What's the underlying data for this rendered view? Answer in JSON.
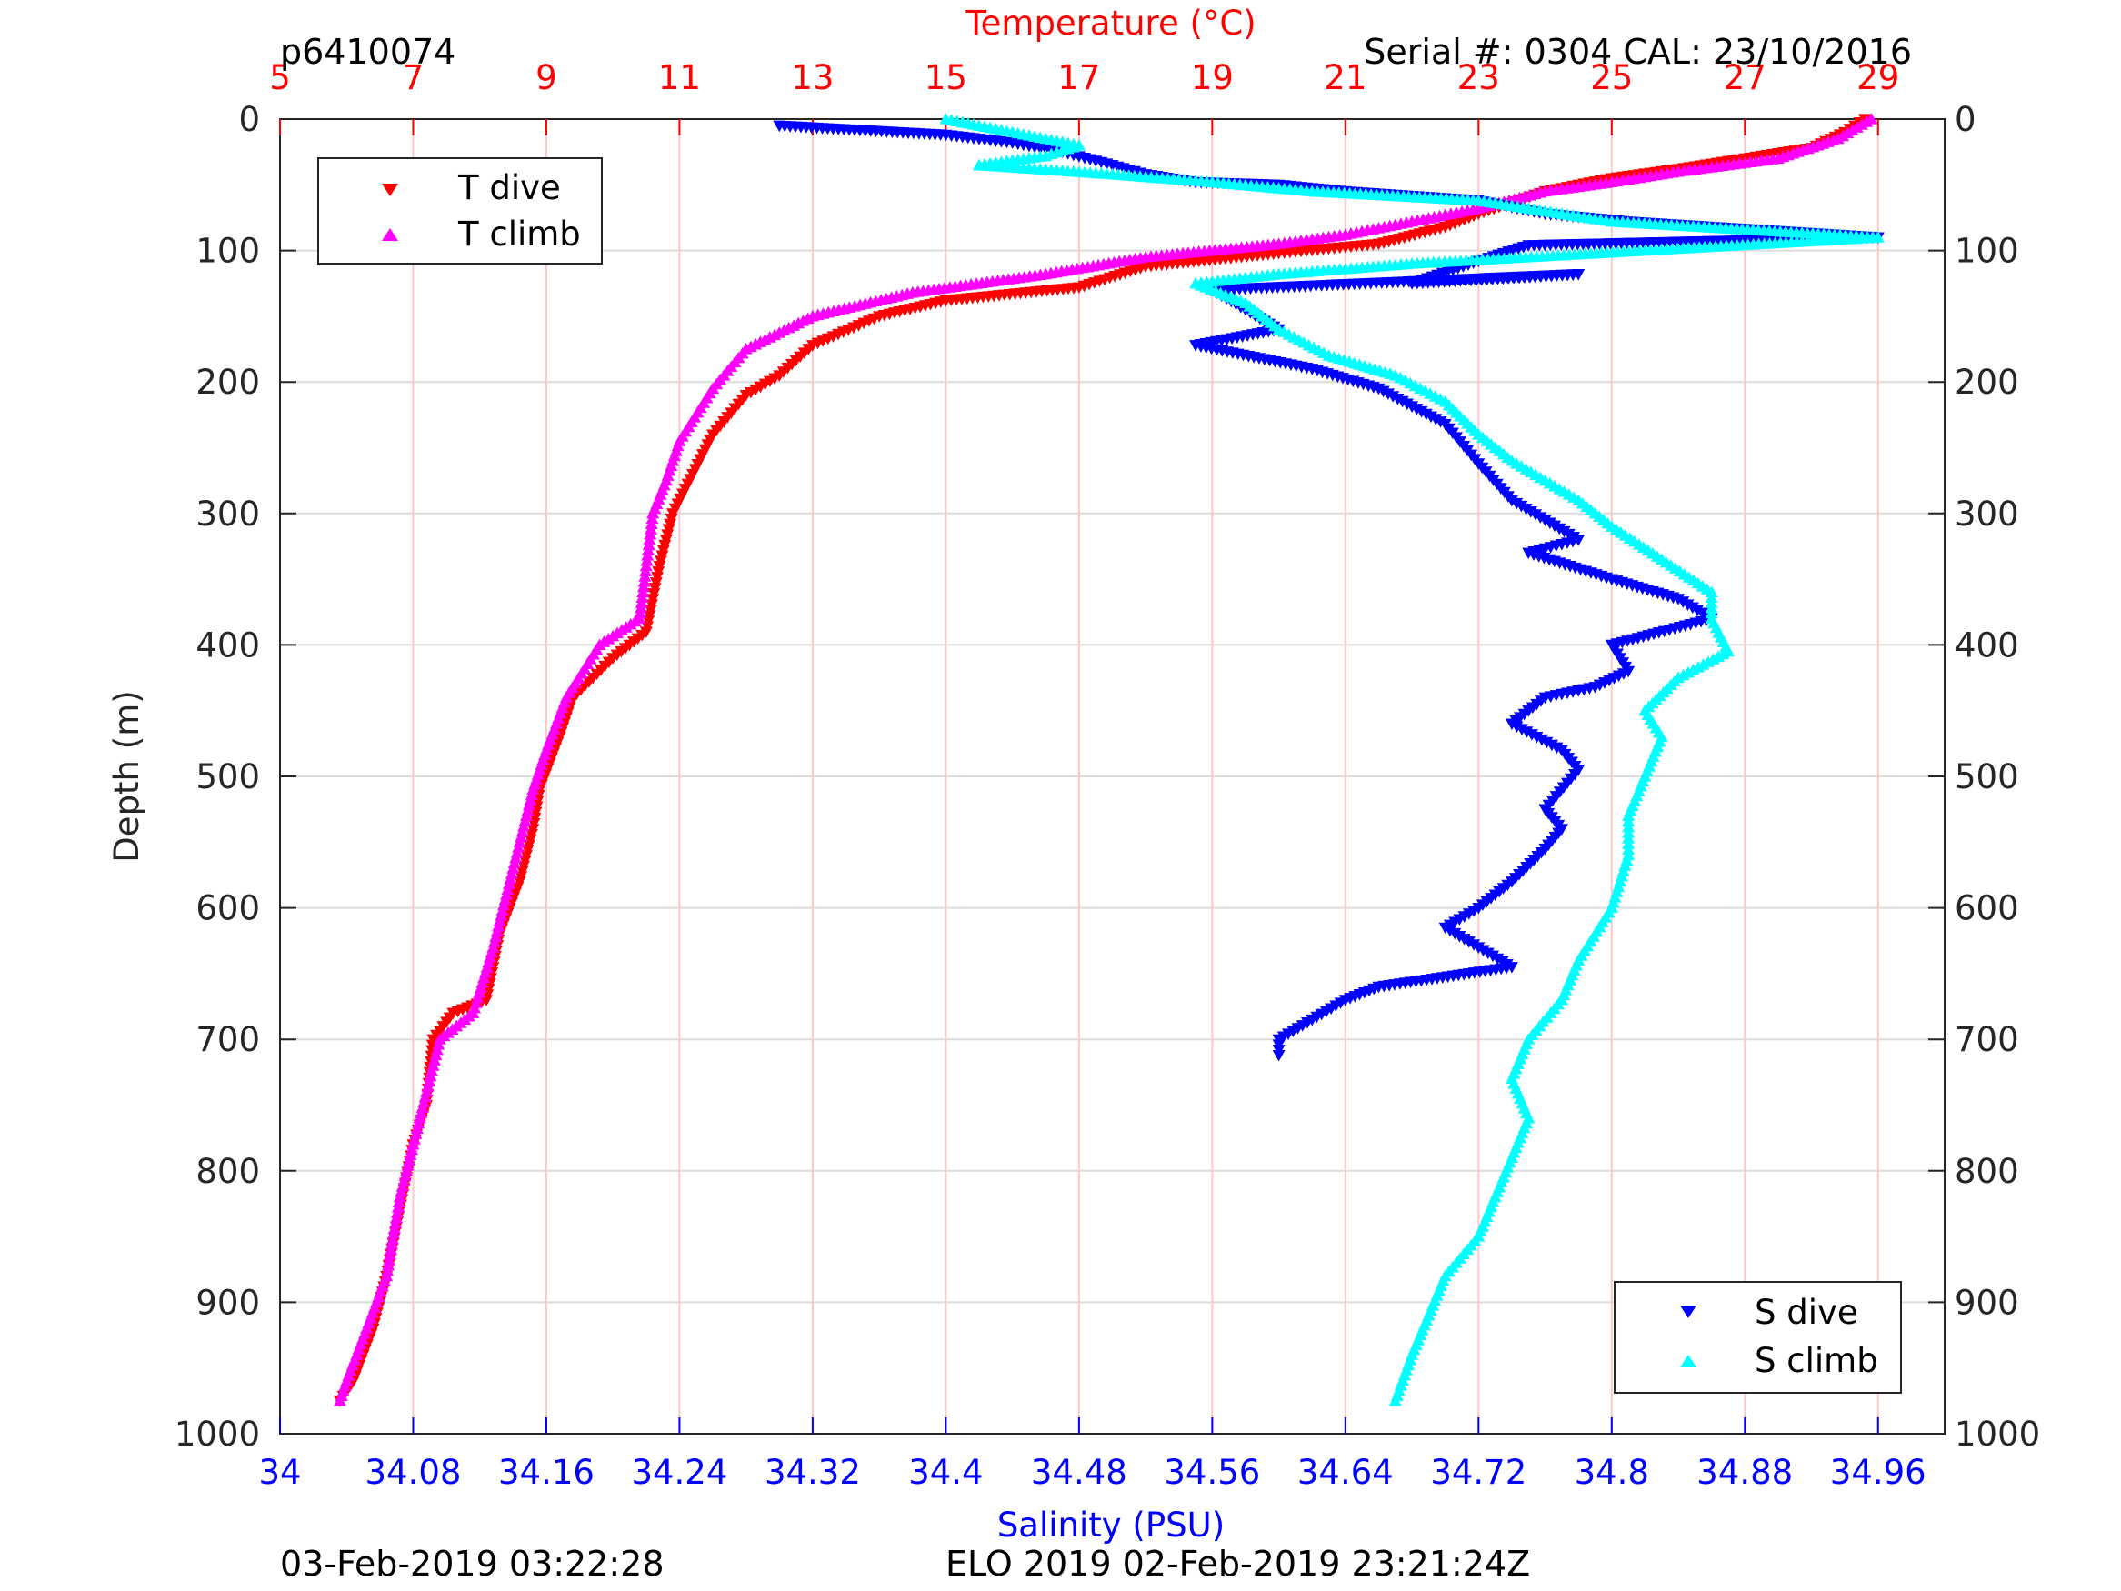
{
  "chart_data": {
    "type": "scatter",
    "title_left": "p6410074",
    "title_right": "Serial #: 0304  CAL: 23/10/2016",
    "footer_left": "03-Feb-2019 03:22:28",
    "footer_right": "ELO 2019 02-Feb-2019 23:21:24Z",
    "y_axis": {
      "label": "Depth (m)",
      "range": [
        0,
        1000
      ],
      "reversed": true,
      "ticks": [
        0,
        100,
        200,
        300,
        400,
        500,
        600,
        700,
        800,
        900,
        1000
      ]
    },
    "temperature_axis": {
      "label": "Temperature (°C)",
      "position": "top",
      "range": [
        5,
        30
      ],
      "ticks": [
        5,
        7,
        9,
        11,
        13,
        15,
        17,
        19,
        21,
        23,
        25,
        27,
        29
      ],
      "color": "#ff0000"
    },
    "salinity_axis": {
      "label": "Salinity (PSU)",
      "position": "bottom",
      "range": [
        34.0,
        35.0
      ],
      "ticks": [
        "34",
        "34.08",
        "34.16",
        "34.24",
        "34.32",
        "34.4",
        "34.48",
        "34.56",
        "34.64",
        "34.72",
        "34.8",
        "34.88",
        "34.96"
      ],
      "color": "#0000ff"
    },
    "grid": "vertical-red-temperature, horizontal-gray-depth",
    "legends": [
      {
        "position": "top-left",
        "entries": [
          {
            "label": "T dive",
            "color": "#ff0000",
            "marker": "triangle-down"
          },
          {
            "label": "T climb",
            "color": "#ff00ff",
            "marker": "triangle-up"
          }
        ]
      },
      {
        "position": "bottom-right",
        "entries": [
          {
            "label": "S dive",
            "color": "#0000ff",
            "marker": "triangle-down"
          },
          {
            "label": "S climb",
            "color": "#00ffff",
            "marker": "triangle-up"
          }
        ]
      }
    ],
    "series": [
      {
        "name": "T dive",
        "axis": "temperature",
        "color": "#ff0000",
        "marker": "triangle-down",
        "points": [
          [
            28.8,
            0
          ],
          [
            28.5,
            10
          ],
          [
            28.0,
            22
          ],
          [
            27.0,
            30
          ],
          [
            26.0,
            38
          ],
          [
            25.0,
            45
          ],
          [
            24.0,
            55
          ],
          [
            23.0,
            72
          ],
          [
            22.5,
            82
          ],
          [
            21.5,
            95
          ],
          [
            20.0,
            102
          ],
          [
            18.0,
            112
          ],
          [
            17.0,
            128
          ],
          [
            15.0,
            138
          ],
          [
            14.0,
            150
          ],
          [
            13.0,
            172
          ],
          [
            12.5,
            195
          ],
          [
            12.0,
            210
          ],
          [
            11.5,
            240
          ],
          [
            11.2,
            270
          ],
          [
            10.9,
            300
          ],
          [
            10.7,
            340
          ],
          [
            10.5,
            390
          ],
          [
            10.0,
            410
          ],
          [
            9.4,
            440
          ],
          [
            9.2,
            470
          ],
          [
            8.9,
            510
          ],
          [
            8.8,
            540
          ],
          [
            8.6,
            580
          ],
          [
            8.3,
            620
          ],
          [
            8.1,
            670
          ],
          [
            7.6,
            680
          ],
          [
            7.3,
            700
          ],
          [
            7.2,
            750
          ],
          [
            7.0,
            780
          ],
          [
            6.8,
            830
          ],
          [
            6.6,
            880
          ],
          [
            6.4,
            920
          ],
          [
            6.1,
            960
          ],
          [
            5.9,
            975
          ]
        ]
      },
      {
        "name": "T climb",
        "axis": "temperature",
        "color": "#ff00ff",
        "marker": "triangle-up",
        "points": [
          [
            28.9,
            0
          ],
          [
            28.4,
            15
          ],
          [
            27.5,
            30
          ],
          [
            26.0,
            40
          ],
          [
            25.0,
            48
          ],
          [
            24.0,
            55
          ],
          [
            23.0,
            68
          ],
          [
            22.0,
            78
          ],
          [
            21.0,
            88
          ],
          [
            20.0,
            95
          ],
          [
            18.0,
            105
          ],
          [
            16.5,
            118
          ],
          [
            14.5,
            132
          ],
          [
            13.0,
            150
          ],
          [
            12.0,
            175
          ],
          [
            11.5,
            205
          ],
          [
            11.0,
            245
          ],
          [
            10.8,
            275
          ],
          [
            10.6,
            300
          ],
          [
            10.5,
            340
          ],
          [
            10.4,
            380
          ],
          [
            9.8,
            400
          ],
          [
            9.3,
            440
          ],
          [
            9.0,
            480
          ],
          [
            8.8,
            510
          ],
          [
            8.6,
            550
          ],
          [
            8.4,
            590
          ],
          [
            8.2,
            630
          ],
          [
            7.9,
            680
          ],
          [
            7.4,
            700
          ],
          [
            7.2,
            740
          ],
          [
            7.0,
            780
          ],
          [
            6.8,
            820
          ],
          [
            6.6,
            880
          ],
          [
            6.3,
            920
          ],
          [
            6.0,
            960
          ],
          [
            5.9,
            975
          ]
        ]
      },
      {
        "name": "S dive",
        "axis": "salinity",
        "color": "#0000ff",
        "marker": "triangle-down",
        "points": [
          [
            34.3,
            5
          ],
          [
            34.4,
            12
          ],
          [
            34.44,
            18
          ],
          [
            34.47,
            25
          ],
          [
            34.5,
            35
          ],
          [
            34.52,
            42
          ],
          [
            34.55,
            48
          ],
          [
            34.6,
            50
          ],
          [
            34.64,
            55
          ],
          [
            34.72,
            62
          ],
          [
            34.76,
            72
          ],
          [
            34.81,
            78
          ],
          [
            34.96,
            90
          ],
          [
            34.75,
            96
          ],
          [
            34.72,
            108
          ],
          [
            34.68,
            125
          ],
          [
            34.78,
            118
          ],
          [
            34.56,
            130
          ],
          [
            34.6,
            160
          ],
          [
            34.55,
            172
          ],
          [
            34.62,
            190
          ],
          [
            34.66,
            205
          ],
          [
            34.7,
            232
          ],
          [
            34.72,
            262
          ],
          [
            34.74,
            290
          ],
          [
            34.76,
            305
          ],
          [
            34.78,
            320
          ],
          [
            34.75,
            330
          ],
          [
            34.8,
            350
          ],
          [
            34.84,
            365
          ],
          [
            34.86,
            380
          ],
          [
            34.8,
            400
          ],
          [
            34.81,
            420
          ],
          [
            34.79,
            432
          ],
          [
            34.76,
            440
          ],
          [
            34.74,
            460
          ],
          [
            34.77,
            480
          ],
          [
            34.78,
            495
          ],
          [
            34.76,
            525
          ],
          [
            34.77,
            540
          ],
          [
            34.76,
            555
          ],
          [
            34.74,
            580
          ],
          [
            34.72,
            600
          ],
          [
            34.7,
            615
          ],
          [
            34.74,
            645
          ],
          [
            34.66,
            660
          ],
          [
            34.64,
            670
          ],
          [
            34.62,
            685
          ],
          [
            34.6,
            700
          ],
          [
            34.6,
            712
          ]
        ]
      },
      {
        "name": "S climb",
        "axis": "salinity",
        "color": "#00ffff",
        "marker": "triangle-up",
        "points": [
          [
            34.4,
            0
          ],
          [
            34.44,
            10
          ],
          [
            34.48,
            20
          ],
          [
            34.46,
            28
          ],
          [
            34.42,
            35
          ],
          [
            34.5,
            42
          ],
          [
            34.56,
            48
          ],
          [
            34.62,
            55
          ],
          [
            34.72,
            62
          ],
          [
            34.76,
            70
          ],
          [
            34.8,
            78
          ],
          [
            34.96,
            90
          ],
          [
            34.68,
            110
          ],
          [
            34.6,
            118
          ],
          [
            34.55,
            125
          ],
          [
            34.58,
            140
          ],
          [
            34.6,
            160
          ],
          [
            34.63,
            180
          ],
          [
            34.67,
            195
          ],
          [
            34.7,
            215
          ],
          [
            34.72,
            240
          ],
          [
            34.74,
            260
          ],
          [
            34.78,
            290
          ],
          [
            34.8,
            310
          ],
          [
            34.83,
            335
          ],
          [
            34.86,
            360
          ],
          [
            34.86,
            380
          ],
          [
            34.87,
            405
          ],
          [
            34.84,
            425
          ],
          [
            34.82,
            450
          ],
          [
            34.83,
            470
          ],
          [
            34.82,
            500
          ],
          [
            34.81,
            530
          ],
          [
            34.81,
            560
          ],
          [
            34.8,
            600
          ],
          [
            34.78,
            640
          ],
          [
            34.77,
            670
          ],
          [
            34.75,
            700
          ],
          [
            34.74,
            730
          ],
          [
            34.75,
            760
          ],
          [
            34.74,
            790
          ],
          [
            34.73,
            820
          ],
          [
            34.72,
            850
          ],
          [
            34.7,
            880
          ],
          [
            34.69,
            910
          ],
          [
            34.68,
            940
          ],
          [
            34.67,
            975
          ]
        ]
      }
    ]
  }
}
